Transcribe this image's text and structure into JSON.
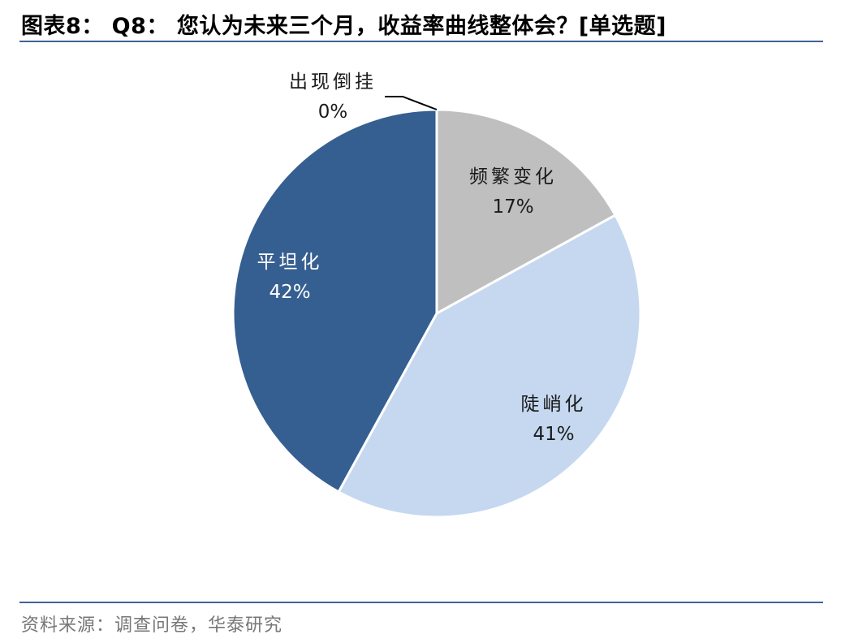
{
  "title": "图表8： Q8： 您认为未来三个月，收益率曲线整体会？[单选题]",
  "source": "资料来源：调查问卷，华泰研究",
  "chart_data": {
    "type": "pie",
    "title": "",
    "start_angle_deg": 0,
    "direction": "clockwise",
    "legend": "none",
    "slices": [
      {
        "label": "出现倒挂",
        "value": 0,
        "display": "0%",
        "color": "#ffffff",
        "text_color": "#1a1a1a"
      },
      {
        "label": "频繁变化",
        "value": 17,
        "display": "17%",
        "color": "#bfbfbf",
        "text_color": "#1a1a1a"
      },
      {
        "label": "陡峭化",
        "value": 41,
        "display": "41%",
        "color": "#c5d8f0",
        "text_color": "#1a1a1a"
      },
      {
        "label": "平坦化",
        "value": 42,
        "display": "42%",
        "color": "#365f91",
        "text_color": "#ffffff"
      }
    ]
  }
}
